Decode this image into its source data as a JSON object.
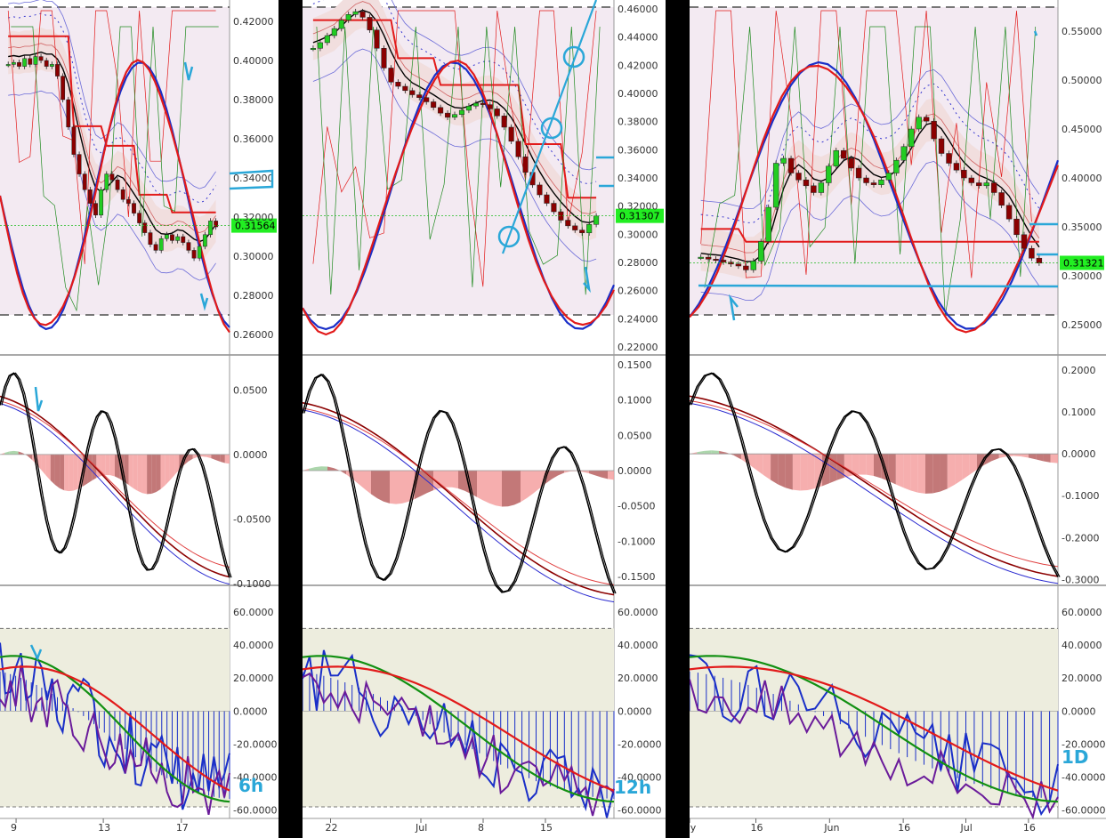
{
  "colors": {
    "bull": "#22cc22",
    "bear": "#8b0000",
    "bandFill": "#f1dede",
    "bgShade": "#f3eaf2",
    "oscBg": "#ededde",
    "red": "#e21a1a",
    "blue": "#1a2fc8",
    "green": "#1f8a1f",
    "purple": "#6a1b9a",
    "cyan": "#2aa7d8",
    "priceTag": "#22ee22"
  },
  "charts": [
    {
      "id": "6h",
      "timeframe_label": "6h",
      "price": {
        "ylim": [
          0.25,
          0.43
        ],
        "ticks": [
          "0.42000",
          "0.40000",
          "0.38000",
          "0.36000",
          "0.34000",
          "0.32000",
          "0.30000",
          "0.28000",
          "0.26000"
        ],
        "tick_values": [
          0.42,
          0.4,
          0.38,
          0.36,
          0.34,
          0.32,
          0.3,
          0.28,
          0.26
        ],
        "last_price": "0.31564",
        "last_value": 0.31564
      },
      "macd": {
        "ylim": [
          -0.1,
          0.075
        ],
        "ticks": [
          "0.0500",
          "0.0000",
          "-0.0500",
          "-0.1000"
        ],
        "tick_values": [
          0.05,
          0.0,
          -0.05,
          -0.1
        ]
      },
      "osc": {
        "ylim": [
          -65,
          75
        ],
        "ticks": [
          "60.0000",
          "40.0000",
          "20.0000",
          "0.0000",
          "-20.0000",
          "-40.0000",
          "-60.0000"
        ],
        "tick_values": [
          60,
          40,
          20,
          0,
          -20,
          -40,
          -60
        ]
      },
      "x_labels": [
        "9",
        "13",
        "17"
      ],
      "x_positions": [
        0.07,
        0.45,
        0.79
      ],
      "candles": [
        0.398,
        0.399,
        0.397,
        0.401,
        0.398,
        0.402,
        0.4,
        0.397,
        0.398,
        0.392,
        0.38,
        0.366,
        0.352,
        0.342,
        0.334,
        0.327,
        0.321,
        0.334,
        0.342,
        0.339,
        0.334,
        0.329,
        0.327,
        0.322,
        0.317,
        0.312,
        0.306,
        0.303,
        0.309,
        0.311,
        0.308,
        0.31,
        0.307,
        0.303,
        0.299,
        0.305,
        0.311,
        0.318,
        0.315
      ]
    },
    {
      "id": "12h",
      "timeframe_label": "12h",
      "price": {
        "ylim": [
          0.215,
          0.465
        ],
        "ticks": [
          "0.46000",
          "0.44000",
          "0.42000",
          "0.40000",
          "0.38000",
          "0.36000",
          "0.34000",
          "0.32000",
          "0.30000",
          "0.28000",
          "0.26000",
          "0.24000",
          "0.22000"
        ],
        "tick_values": [
          0.46,
          0.44,
          0.42,
          0.4,
          0.38,
          0.36,
          0.34,
          0.32,
          0.3,
          0.28,
          0.26,
          0.24,
          0.22
        ],
        "last_price": "0.31307",
        "last_value": 0.31307
      },
      "macd": {
        "ylim": [
          -0.16,
          0.16
        ],
        "ticks": [
          "0.1500",
          "0.1000",
          "0.0500",
          "0.0000",
          "-0.0500",
          "-0.1000",
          "-0.1500"
        ],
        "tick_values": [
          0.15,
          0.1,
          0.05,
          0.0,
          -0.05,
          -0.1,
          -0.15
        ]
      },
      "osc": {
        "ylim": [
          -65,
          75
        ],
        "ticks": [
          "60.0000",
          "40.0000",
          "20.0000",
          "0.0000",
          "-20.0000",
          "-40.0000",
          "-60.0000"
        ],
        "tick_values": [
          60,
          40,
          20,
          0,
          -20,
          -40,
          -60
        ]
      },
      "x_labels": [
        "22",
        "Jul",
        "8",
        "15"
      ],
      "x_positions": [
        0.09,
        0.38,
        0.58,
        0.78
      ],
      "candles": [
        0.432,
        0.436,
        0.441,
        0.446,
        0.452,
        0.456,
        0.458,
        0.454,
        0.445,
        0.432,
        0.418,
        0.408,
        0.405,
        0.402,
        0.399,
        0.397,
        0.394,
        0.39,
        0.386,
        0.383,
        0.385,
        0.388,
        0.391,
        0.393,
        0.392,
        0.389,
        0.384,
        0.376,
        0.366,
        0.355,
        0.344,
        0.335,
        0.328,
        0.322,
        0.316,
        0.31,
        0.306,
        0.303,
        0.301,
        0.307,
        0.313
      ]
    },
    {
      "id": "1D",
      "timeframe_label": "1D",
      "price": {
        "ylim": [
          0.22,
          0.58
        ],
        "ticks": [
          "0.55000",
          "0.50000",
          "0.45000",
          "0.40000",
          "0.35000",
          "0.30000",
          "0.25000"
        ],
        "tick_values": [
          0.55,
          0.5,
          0.45,
          0.4,
          0.35,
          0.3,
          0.25
        ],
        "last_price": "0.31321",
        "last_value": 0.31321
      },
      "macd": {
        "ylim": [
          -0.31,
          0.23
        ],
        "ticks": [
          "0.2000",
          "0.1000",
          "0.0000",
          "-0.1000",
          "-0.2000",
          "-0.3000"
        ],
        "tick_values": [
          0.2,
          0.1,
          0.0,
          -0.1,
          -0.2,
          -0.3
        ]
      },
      "osc": {
        "ylim": [
          -65,
          75
        ],
        "ticks": [
          "60.0000",
          "40.0000",
          "20.0000",
          "0.0000",
          "-20.0000",
          "-40.0000",
          "-60.0000"
        ],
        "tick_values": [
          60,
          40,
          20,
          0,
          -20,
          -40,
          -60
        ]
      },
      "x_labels": [
        "ay",
        "16",
        "Jun",
        "16",
        "Jul",
        "16"
      ],
      "x_positions": [
        0.0,
        0.18,
        0.38,
        0.58,
        0.75,
        0.92
      ],
      "candles": [
        0.319,
        0.317,
        0.316,
        0.314,
        0.312,
        0.31,
        0.306,
        0.315,
        0.335,
        0.37,
        0.415,
        0.42,
        0.405,
        0.398,
        0.392,
        0.385,
        0.395,
        0.412,
        0.428,
        0.42,
        0.41,
        0.4,
        0.395,
        0.393,
        0.398,
        0.405,
        0.418,
        0.432,
        0.45,
        0.462,
        0.458,
        0.44,
        0.425,
        0.415,
        0.408,
        0.4,
        0.395,
        0.392,
        0.395,
        0.385,
        0.372,
        0.358,
        0.342,
        0.328,
        0.318,
        0.313
      ]
    }
  ]
}
